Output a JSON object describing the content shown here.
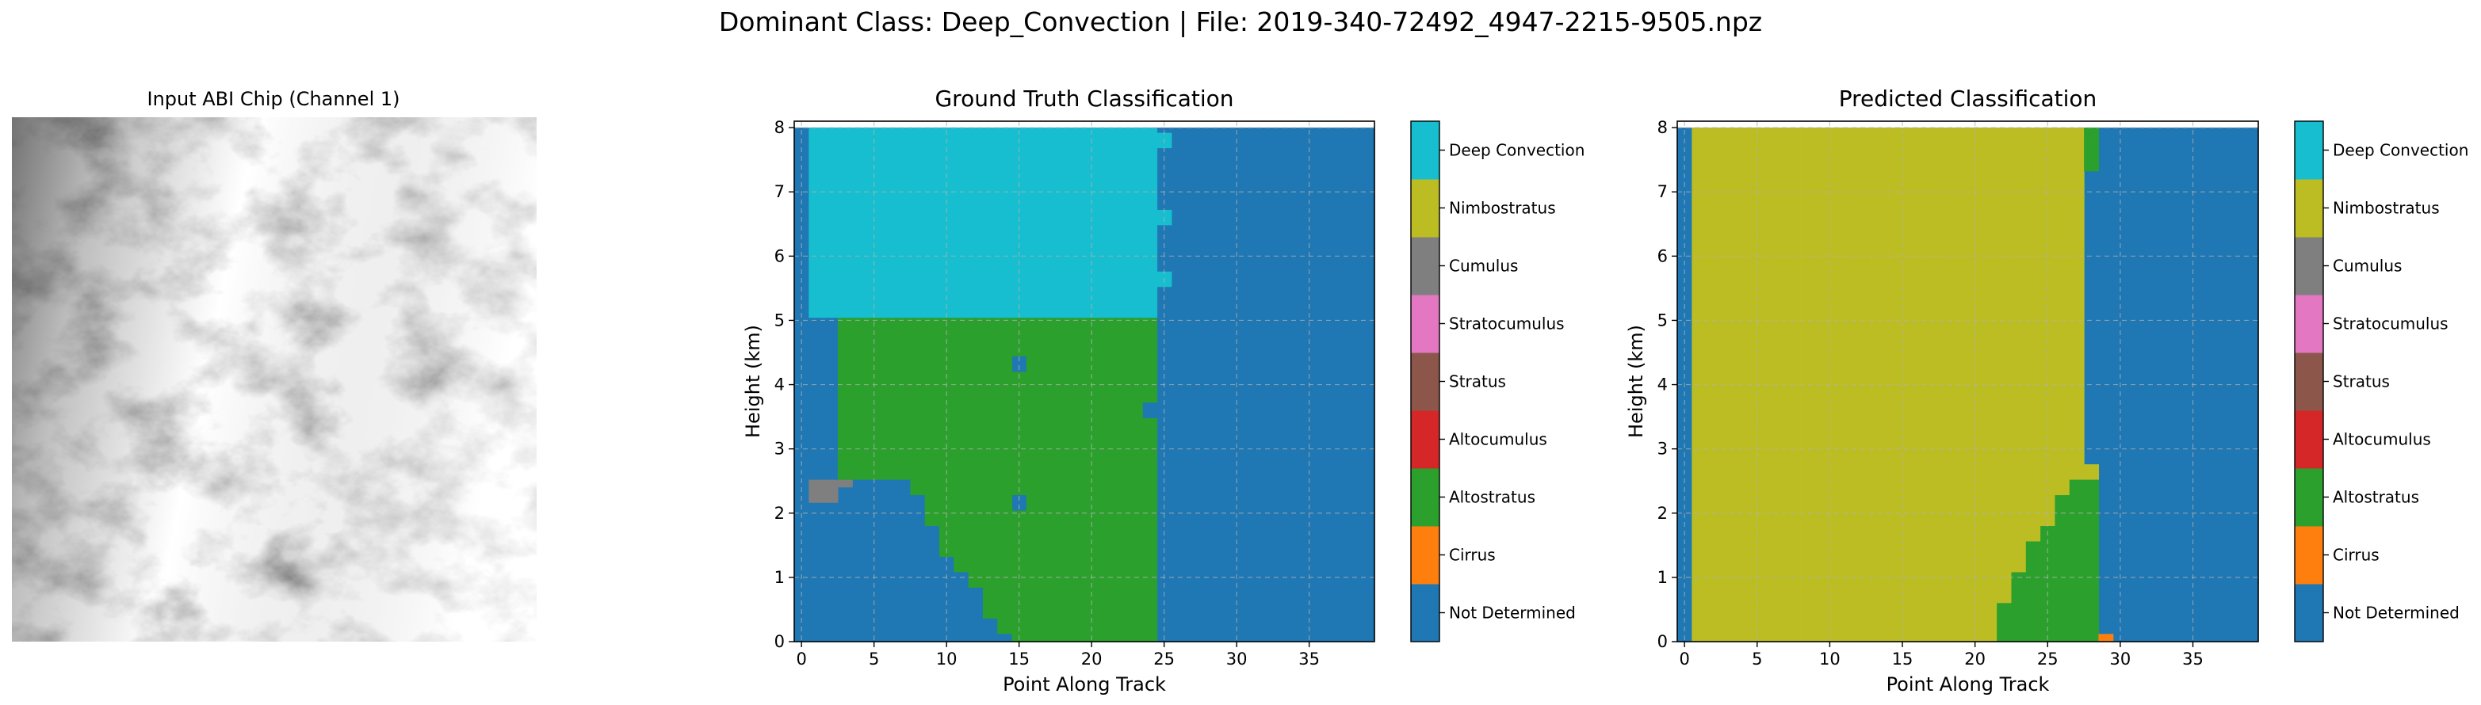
{
  "page": {
    "suptitle": "Dominant Class: Deep_Convection | File: 2019-340-72492_4947-2215-9505.npz"
  },
  "input_panel": {
    "title": "Input ABI Chip (Channel 1)"
  },
  "classes": [
    {
      "name": "Not Determined",
      "color": "#1f77b4"
    },
    {
      "name": "Cirrus",
      "color": "#ff7f0e"
    },
    {
      "name": "Altostratus",
      "color": "#2ca02c"
    },
    {
      "name": "Altocumulus",
      "color": "#d62728"
    },
    {
      "name": "Stratus",
      "color": "#8c564b"
    },
    {
      "name": "Stratocumulus",
      "color": "#e377c2"
    },
    {
      "name": "Cumulus",
      "color": "#7f7f7f"
    },
    {
      "name": "Nimbostratus",
      "color": "#bcbd22"
    },
    {
      "name": "Deep Convection",
      "color": "#17becf"
    }
  ],
  "chart_data": [
    {
      "type": "heatmap",
      "id": "ground_truth",
      "title": "Ground Truth Classification",
      "xlabel": "Point Along Track",
      "ylabel": "Height (km)",
      "xlim": [
        -0.5,
        39.5
      ],
      "ylim": [
        0,
        8.1
      ],
      "xticks": [
        0,
        5,
        10,
        15,
        20,
        25,
        30,
        35
      ],
      "yticks": [
        0,
        1,
        2,
        3,
        4,
        5,
        6,
        7,
        8
      ],
      "grid": true,
      "cell_height_km": 0.24,
      "background_class": "Not Determined",
      "columns": [
        {
          "x": 0,
          "spans": []
        },
        {
          "x": 1,
          "spans": [
            [
              2.16,
              2.52,
              "Cumulus"
            ],
            [
              5.04,
              8.0,
              "Deep Convection"
            ]
          ]
        },
        {
          "x": 2,
          "spans": [
            [
              2.16,
              2.52,
              "Cumulus"
            ],
            [
              5.04,
              8.0,
              "Deep Convection"
            ]
          ]
        },
        {
          "x": 3,
          "spans": [
            [
              2.4,
              2.52,
              "Cumulus"
            ],
            [
              2.52,
              5.04,
              "Altostratus"
            ],
            [
              5.04,
              8.0,
              "Deep Convection"
            ]
          ]
        },
        {
          "x": 4,
          "spans": [
            [
              2.52,
              5.04,
              "Altostratus"
            ],
            [
              5.04,
              8.0,
              "Deep Convection"
            ]
          ]
        },
        {
          "x": 5,
          "spans": [
            [
              2.52,
              5.04,
              "Altostratus"
            ],
            [
              5.04,
              8.0,
              "Deep Convection"
            ]
          ]
        },
        {
          "x": 6,
          "spans": [
            [
              2.52,
              5.04,
              "Altostratus"
            ],
            [
              5.04,
              8.0,
              "Deep Convection"
            ]
          ]
        },
        {
          "x": 7,
          "spans": [
            [
              2.52,
              5.04,
              "Altostratus"
            ],
            [
              5.04,
              8.0,
              "Deep Convection"
            ]
          ]
        },
        {
          "x": 8,
          "spans": [
            [
              2.28,
              5.04,
              "Altostratus"
            ],
            [
              5.04,
              8.0,
              "Deep Convection"
            ]
          ]
        },
        {
          "x": 9,
          "spans": [
            [
              1.8,
              5.04,
              "Altostratus"
            ],
            [
              5.04,
              8.0,
              "Deep Convection"
            ]
          ]
        },
        {
          "x": 10,
          "spans": [
            [
              1.32,
              5.04,
              "Altostratus"
            ],
            [
              5.04,
              8.0,
              "Deep Convection"
            ]
          ]
        },
        {
          "x": 11,
          "spans": [
            [
              1.08,
              5.04,
              "Altostratus"
            ],
            [
              5.04,
              8.0,
              "Deep Convection"
            ]
          ]
        },
        {
          "x": 12,
          "spans": [
            [
              0.84,
              5.04,
              "Altostratus"
            ],
            [
              5.04,
              8.0,
              "Deep Convection"
            ]
          ]
        },
        {
          "x": 13,
          "spans": [
            [
              0.36,
              5.04,
              "Altostratus"
            ],
            [
              5.04,
              8.0,
              "Deep Convection"
            ]
          ]
        },
        {
          "x": 14,
          "spans": [
            [
              0.12,
              5.04,
              "Altostratus"
            ],
            [
              5.04,
              8.0,
              "Deep Convection"
            ]
          ]
        },
        {
          "x": 15,
          "spans": [
            [
              0.0,
              2.04,
              "Altostratus"
            ],
            [
              2.28,
              4.2,
              "Altostratus"
            ],
            [
              4.44,
              5.04,
              "Altostratus"
            ],
            [
              5.04,
              8.0,
              "Deep Convection"
            ]
          ]
        },
        {
          "x": 16,
          "spans": [
            [
              0.0,
              5.04,
              "Altostratus"
            ],
            [
              5.04,
              8.0,
              "Deep Convection"
            ]
          ]
        },
        {
          "x": 17,
          "spans": [
            [
              0.0,
              5.04,
              "Altostratus"
            ],
            [
              5.04,
              8.0,
              "Deep Convection"
            ]
          ]
        },
        {
          "x": 18,
          "spans": [
            [
              0.0,
              5.04,
              "Altostratus"
            ],
            [
              5.04,
              8.0,
              "Deep Convection"
            ]
          ]
        },
        {
          "x": 19,
          "spans": [
            [
              0.0,
              5.04,
              "Altostratus"
            ],
            [
              5.04,
              8.0,
              "Deep Convection"
            ]
          ]
        },
        {
          "x": 20,
          "spans": [
            [
              0.0,
              5.04,
              "Altostratus"
            ],
            [
              5.04,
              8.0,
              "Deep Convection"
            ]
          ]
        },
        {
          "x": 21,
          "spans": [
            [
              0.0,
              5.04,
              "Altostratus"
            ],
            [
              5.04,
              8.0,
              "Deep Convection"
            ]
          ]
        },
        {
          "x": 22,
          "spans": [
            [
              0.0,
              5.04,
              "Altostratus"
            ],
            [
              5.04,
              8.0,
              "Deep Convection"
            ]
          ]
        },
        {
          "x": 23,
          "spans": [
            [
              0.0,
              5.04,
              "Altostratus"
            ],
            [
              5.04,
              8.0,
              "Deep Convection"
            ]
          ]
        },
        {
          "x": 24,
          "spans": [
            [
              0.0,
              3.48,
              "Altostratus"
            ],
            [
              3.72,
              5.04,
              "Altostratus"
            ],
            [
              5.04,
              8.0,
              "Deep Convection"
            ]
          ]
        },
        {
          "x": 25,
          "spans": [
            [
              5.52,
              5.76,
              "Deep Convection"
            ],
            [
              6.48,
              6.72,
              "Deep Convection"
            ],
            [
              7.68,
              7.92,
              "Deep Convection"
            ]
          ]
        }
      ]
    },
    {
      "type": "heatmap",
      "id": "predicted",
      "title": "Predicted Classification",
      "xlabel": "Point Along Track",
      "ylabel": "Height (km)",
      "xlim": [
        -0.5,
        39.5
      ],
      "ylim": [
        0,
        8.1
      ],
      "xticks": [
        0,
        5,
        10,
        15,
        20,
        25,
        30,
        35
      ],
      "yticks": [
        0,
        1,
        2,
        3,
        4,
        5,
        6,
        7,
        8
      ],
      "grid": true,
      "cell_height_km": 0.24,
      "background_class": "Not Determined",
      "columns": [
        {
          "x": 0,
          "spans": []
        },
        {
          "x": 1,
          "spans": [
            [
              0.0,
              8.0,
              "Nimbostratus"
            ]
          ]
        },
        {
          "x": 2,
          "spans": [
            [
              0.0,
              8.0,
              "Nimbostratus"
            ]
          ]
        },
        {
          "x": 3,
          "spans": [
            [
              0.0,
              8.0,
              "Nimbostratus"
            ]
          ]
        },
        {
          "x": 4,
          "spans": [
            [
              0.0,
              8.0,
              "Nimbostratus"
            ]
          ]
        },
        {
          "x": 5,
          "spans": [
            [
              0.0,
              8.0,
              "Nimbostratus"
            ]
          ]
        },
        {
          "x": 6,
          "spans": [
            [
              0.0,
              8.0,
              "Nimbostratus"
            ]
          ]
        },
        {
          "x": 7,
          "spans": [
            [
              0.0,
              8.0,
              "Nimbostratus"
            ]
          ]
        },
        {
          "x": 8,
          "spans": [
            [
              0.0,
              8.0,
              "Nimbostratus"
            ]
          ]
        },
        {
          "x": 9,
          "spans": [
            [
              0.0,
              8.0,
              "Nimbostratus"
            ]
          ]
        },
        {
          "x": 10,
          "spans": [
            [
              0.0,
              8.0,
              "Nimbostratus"
            ]
          ]
        },
        {
          "x": 11,
          "spans": [
            [
              0.0,
              8.0,
              "Nimbostratus"
            ]
          ]
        },
        {
          "x": 12,
          "spans": [
            [
              0.0,
              8.0,
              "Nimbostratus"
            ]
          ]
        },
        {
          "x": 13,
          "spans": [
            [
              0.0,
              8.0,
              "Nimbostratus"
            ]
          ]
        },
        {
          "x": 14,
          "spans": [
            [
              0.0,
              8.0,
              "Nimbostratus"
            ]
          ]
        },
        {
          "x": 15,
          "spans": [
            [
              0.0,
              8.0,
              "Nimbostratus"
            ]
          ]
        },
        {
          "x": 16,
          "spans": [
            [
              0.0,
              8.0,
              "Nimbostratus"
            ]
          ]
        },
        {
          "x": 17,
          "spans": [
            [
              0.0,
              8.0,
              "Nimbostratus"
            ]
          ]
        },
        {
          "x": 18,
          "spans": [
            [
              0.0,
              8.0,
              "Nimbostratus"
            ]
          ]
        },
        {
          "x": 19,
          "spans": [
            [
              0.0,
              8.0,
              "Nimbostratus"
            ]
          ]
        },
        {
          "x": 20,
          "spans": [
            [
              0.0,
              8.0,
              "Nimbostratus"
            ]
          ]
        },
        {
          "x": 21,
          "spans": [
            [
              0.0,
              8.0,
              "Nimbostratus"
            ]
          ]
        },
        {
          "x": 22,
          "spans": [
            [
              0.0,
              0.6,
              "Altostratus"
            ],
            [
              0.6,
              8.0,
              "Nimbostratus"
            ]
          ]
        },
        {
          "x": 23,
          "spans": [
            [
              0.0,
              1.08,
              "Altostratus"
            ],
            [
              1.08,
              8.0,
              "Nimbostratus"
            ]
          ]
        },
        {
          "x": 24,
          "spans": [
            [
              0.0,
              1.56,
              "Altostratus"
            ],
            [
              1.56,
              8.0,
              "Nimbostratus"
            ]
          ]
        },
        {
          "x": 25,
          "spans": [
            [
              0.0,
              1.8,
              "Altostratus"
            ],
            [
              1.8,
              8.0,
              "Nimbostratus"
            ]
          ]
        },
        {
          "x": 26,
          "spans": [
            [
              0.0,
              2.28,
              "Altostratus"
            ],
            [
              2.28,
              8.0,
              "Nimbostratus"
            ]
          ]
        },
        {
          "x": 27,
          "spans": [
            [
              0.0,
              2.52,
              "Altostratus"
            ],
            [
              2.52,
              8.0,
              "Nimbostratus"
            ]
          ]
        },
        {
          "x": 28,
          "spans": [
            [
              0.0,
              2.52,
              "Altostratus"
            ],
            [
              2.52,
              2.76,
              "Nimbostratus"
            ],
            [
              7.32,
              8.0,
              "Altostratus"
            ]
          ]
        },
        {
          "x": 29,
          "spans": [
            [
              0.0,
              0.12,
              "Cirrus"
            ]
          ]
        }
      ]
    }
  ]
}
